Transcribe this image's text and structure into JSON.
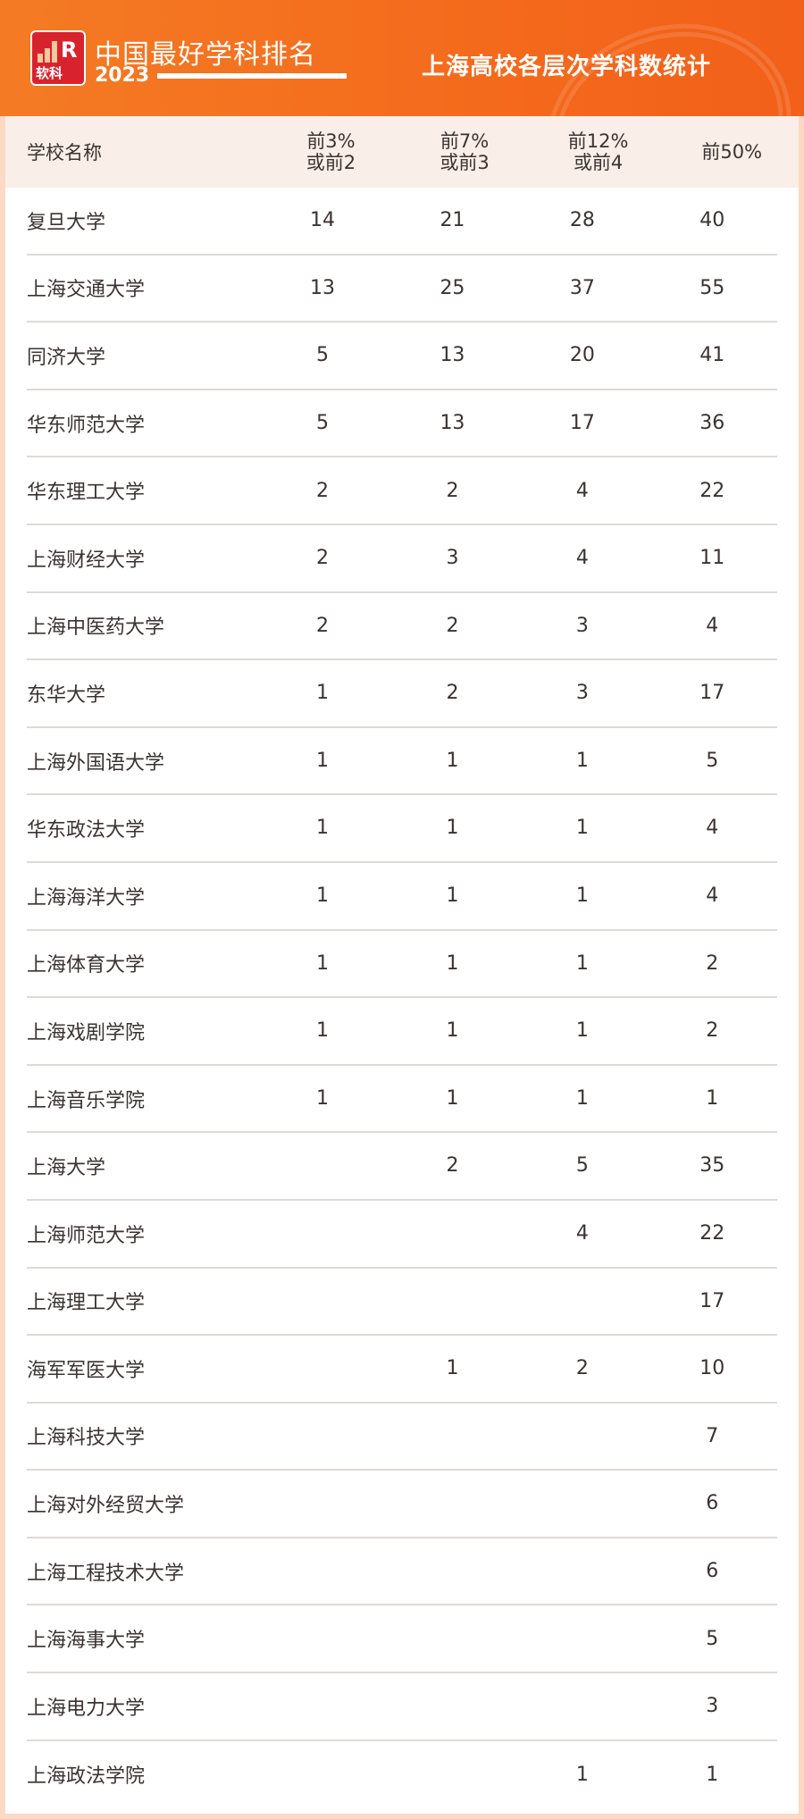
{
  "header": {
    "brand": "中国最好学科排名",
    "year": "2023",
    "logo_text": "软科",
    "title": "上海高校各层次学科数统计",
    "accent": "#f46a1c"
  },
  "table": {
    "columns": [
      [
        "学校名称"
      ],
      [
        "前3%",
        "或前2"
      ],
      [
        "前7%",
        "或前3"
      ],
      [
        "前12%",
        "或前4"
      ],
      [
        "前50%"
      ]
    ],
    "rows": [
      [
        "复旦大学",
        "14",
        "21",
        "28",
        "40"
      ],
      [
        "上海交通大学",
        "13",
        "25",
        "37",
        "55"
      ],
      [
        "同济大学",
        "5",
        "13",
        "20",
        "41"
      ],
      [
        "华东师范大学",
        "5",
        "13",
        "17",
        "36"
      ],
      [
        "华东理工大学",
        "2",
        "2",
        "4",
        "22"
      ],
      [
        "上海财经大学",
        "2",
        "3",
        "4",
        "11"
      ],
      [
        "上海中医药大学",
        "2",
        "2",
        "3",
        "4"
      ],
      [
        "东华大学",
        "1",
        "2",
        "3",
        "17"
      ],
      [
        "上海外国语大学",
        "1",
        "1",
        "1",
        "5"
      ],
      [
        "华东政法大学",
        "1",
        "1",
        "1",
        "4"
      ],
      [
        "上海海洋大学",
        "1",
        "1",
        "1",
        "4"
      ],
      [
        "上海体育大学",
        "1",
        "1",
        "1",
        "2"
      ],
      [
        "上海戏剧学院",
        "1",
        "1",
        "1",
        "2"
      ],
      [
        "上海音乐学院",
        "1",
        "1",
        "1",
        "1"
      ],
      [
        "上海大学",
        "",
        "2",
        "5",
        "35"
      ],
      [
        "上海师范大学",
        "",
        "",
        "4",
        "22"
      ],
      [
        "上海理工大学",
        "",
        "",
        "",
        "17"
      ],
      [
        "海军军医大学",
        "",
        "1",
        "2",
        "10"
      ],
      [
        "上海科技大学",
        "",
        "",
        "",
        "7"
      ],
      [
        "上海对外经贸大学",
        "",
        "",
        "",
        "6"
      ],
      [
        "上海工程技术大学",
        "",
        "",
        "",
        "6"
      ],
      [
        "上海海事大学",
        "",
        "",
        "",
        "5"
      ],
      [
        "上海电力大学",
        "",
        "",
        "",
        "3"
      ],
      [
        "上海政法学院",
        "",
        "",
        "1",
        "1"
      ]
    ]
  }
}
